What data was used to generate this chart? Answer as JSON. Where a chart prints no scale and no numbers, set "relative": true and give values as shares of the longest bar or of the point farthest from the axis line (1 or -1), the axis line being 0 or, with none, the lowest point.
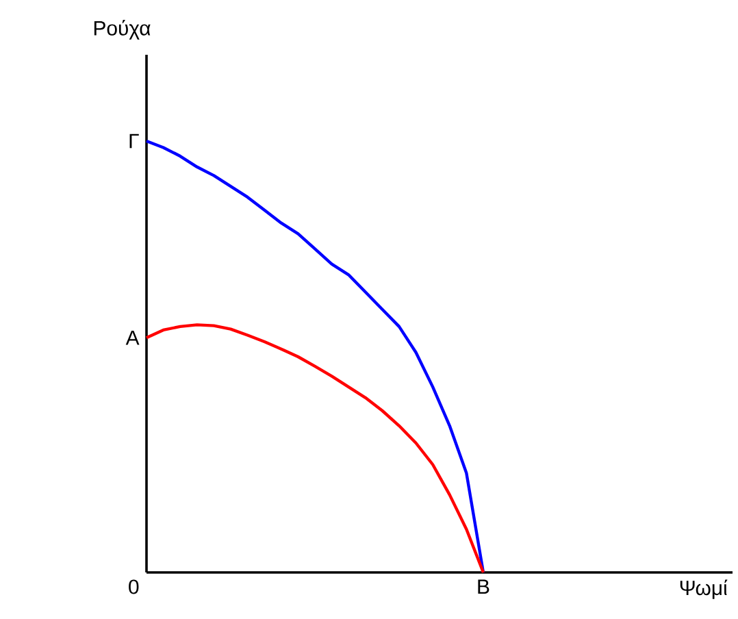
{
  "chart_data": {
    "type": "line",
    "relative": true,
    "ylabel": "Ρούχα",
    "marker": "none",
    "line_style": "solid",
    "annotations": [
      "Γ",
      "A",
      "0",
      "B",
      "Ψωμί"
    ],
    "categories": [
      null,
      null,
      null,
      null,
      null,
      null,
      null,
      null,
      null,
      null,
      null,
      null,
      null,
      null,
      null,
      null,
      null,
      null,
      null,
      null,
      null
    ],
    "series": [
      {
        "color": "#0000ff",
        "values": [
          1,
          0.985,
          0.965,
          0.94,
          0.92,
          0.895,
          0.87,
          0.84,
          0.81,
          0.785,
          0.75,
          0.715,
          0.69,
          0.65,
          0.61,
          0.57,
          0.51,
          0.43,
          0.34,
          0.23,
          0
        ]
      },
      {
        "color": "#ff0000",
        "values": [
          0.544,
          0.562,
          0.57,
          0.574,
          0.572,
          0.564,
          0.55,
          0.535,
          0.518,
          0.5,
          0.478,
          0.455,
          0.43,
          0.405,
          0.375,
          0.34,
          0.3,
          0.25,
          0.18,
          0.1,
          0
        ]
      }
    ]
  }
}
